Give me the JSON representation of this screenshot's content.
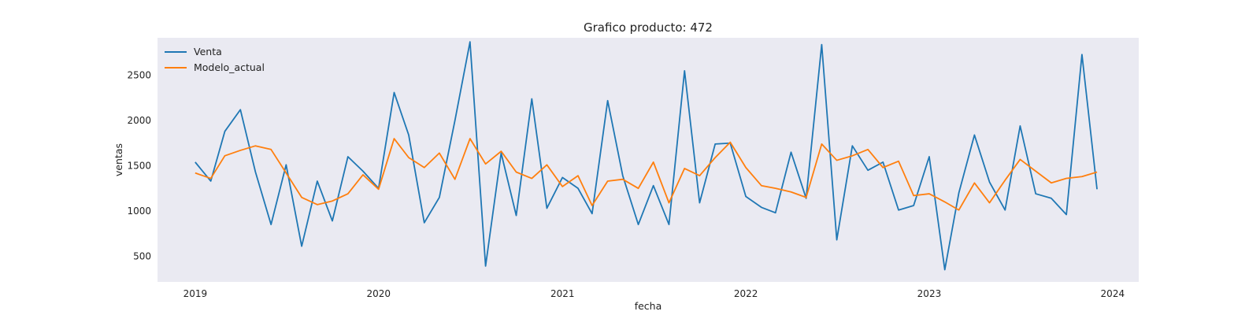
{
  "chart_data": {
    "type": "line",
    "title": "Grafico producto: 472",
    "xlabel": "fecha",
    "ylabel": "ventas",
    "xlim": [
      "2018-10-18",
      "2024-02-22"
    ],
    "ylim": [
      215,
      2915
    ],
    "x_ticks": [
      {
        "value": "2019-01-01",
        "label": "2019"
      },
      {
        "value": "2020-01-01",
        "label": "2020"
      },
      {
        "value": "2021-01-01",
        "label": "2021"
      },
      {
        "value": "2022-01-01",
        "label": "2022"
      },
      {
        "value": "2023-01-01",
        "label": "2023"
      },
      {
        "value": "2024-01-01",
        "label": "2024"
      }
    ],
    "y_ticks": [
      500,
      1000,
      1500,
      2000,
      2500
    ],
    "grid": false,
    "legend_position": "top-left",
    "start_month": "2019-01",
    "series": [
      {
        "name": "Venta",
        "color": "#1f77b4",
        "values": [
          1540,
          1330,
          1880,
          2120,
          1430,
          850,
          1510,
          610,
          1330,
          890,
          1600,
          1440,
          1250,
          2310,
          1840,
          870,
          1150,
          2000,
          2870,
          390,
          1640,
          950,
          2240,
          1030,
          1370,
          1250,
          970,
          2220,
          1390,
          850,
          1280,
          850,
          2550,
          1090,
          1740,
          1750,
          1160,
          1040,
          980,
          1650,
          1140,
          2840,
          680,
          1720,
          1450,
          1540,
          1010,
          1060,
          1600,
          350,
          1200,
          1840,
          1320,
          1010,
          1940,
          1190,
          1140,
          960,
          2730,
          1240
        ]
      },
      {
        "name": "Modelo_actual",
        "color": "#ff7f0e",
        "values": [
          1420,
          1360,
          1610,
          1670,
          1720,
          1680,
          1420,
          1150,
          1070,
          1110,
          1190,
          1400,
          1240,
          1800,
          1590,
          1480,
          1640,
          1350,
          1800,
          1520,
          1660,
          1430,
          1360,
          1510,
          1270,
          1390,
          1060,
          1330,
          1350,
          1250,
          1540,
          1090,
          1470,
          1390,
          1590,
          1760,
          1480,
          1280,
          1250,
          1210,
          1150,
          1740,
          1560,
          1610,
          1680,
          1480,
          1550,
          1170,
          1190,
          1100,
          1010,
          1310,
          1090,
          1340,
          1570,
          1440,
          1310,
          1360,
          1380,
          1430
        ]
      }
    ]
  }
}
